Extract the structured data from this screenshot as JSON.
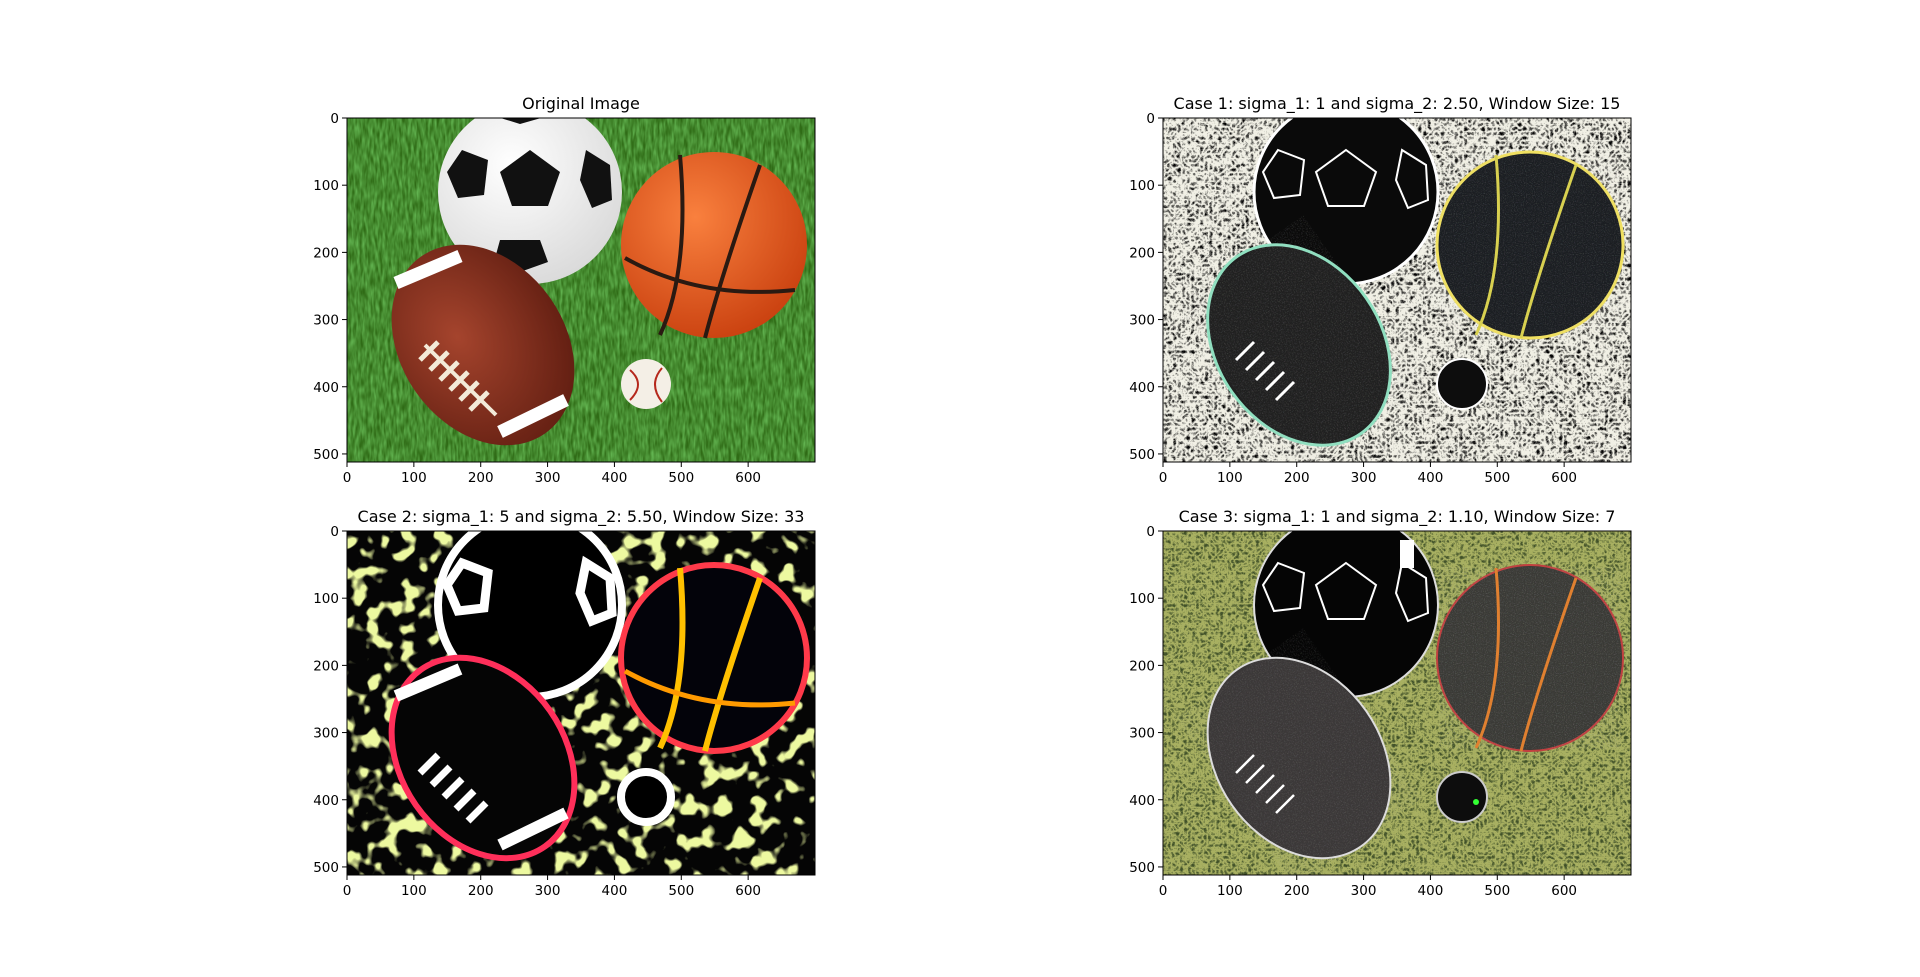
{
  "figure": {
    "panels": [
      {
        "title": "Original Image",
        "xticks": [
          "0",
          "100",
          "200",
          "300",
          "400",
          "500",
          "600"
        ],
        "yticks": [
          "0",
          "100",
          "200",
          "300",
          "400",
          "500"
        ]
      },
      {
        "title": "Case 1: sigma_1: 1 and sigma_2: 2.50, Window Size: 15",
        "xticks": [
          "0",
          "100",
          "200",
          "300",
          "400",
          "500",
          "600"
        ],
        "yticks": [
          "0",
          "100",
          "200",
          "300",
          "400",
          "500"
        ]
      },
      {
        "title": "Case 2: sigma_1: 5 and sigma_2: 5.50, Window Size: 33",
        "xticks": [
          "0",
          "100",
          "200",
          "300",
          "400",
          "500",
          "600"
        ],
        "yticks": [
          "0",
          "100",
          "200",
          "300",
          "400",
          "500"
        ]
      },
      {
        "title": "Case 3: sigma_1: 1 and sigma_2: 1.10, Window Size: 7",
        "xticks": [
          "0",
          "100",
          "200",
          "300",
          "400",
          "500",
          "600"
        ],
        "yticks": [
          "0",
          "100",
          "200",
          "300",
          "400",
          "500"
        ]
      }
    ],
    "image_extent": {
      "x": [
        0,
        700
      ],
      "y": [
        0,
        512
      ]
    }
  }
}
